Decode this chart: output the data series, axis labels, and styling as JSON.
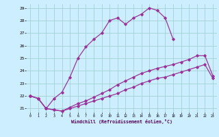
{
  "title": "",
  "xlabel": "Windchill (Refroidissement éolien,°C)",
  "background_color": "#cceeff",
  "line_color": "#993399",
  "xlim": [
    -0.5,
    23.5
  ],
  "ylim": [
    20.7,
    29.3
  ],
  "yticks": [
    21,
    22,
    23,
    24,
    25,
    26,
    27,
    28,
    29
  ],
  "xticks": [
    0,
    1,
    2,
    3,
    4,
    5,
    6,
    7,
    8,
    9,
    10,
    11,
    12,
    13,
    14,
    15,
    16,
    17,
    18,
    19,
    20,
    21,
    22,
    23
  ],
  "curve1_x": [
    0,
    1,
    2,
    3,
    4,
    5,
    6,
    7,
    8,
    9,
    10,
    11,
    12,
    13,
    14,
    15,
    16,
    17,
    18
  ],
  "curve1_y": [
    22.0,
    21.8,
    21.0,
    21.8,
    22.3,
    23.5,
    25.0,
    25.9,
    26.5,
    27.0,
    28.0,
    28.2,
    27.7,
    28.2,
    28.5,
    29.0,
    28.8,
    28.2,
    26.5
  ],
  "curve2_x": [
    0,
    1,
    2,
    3,
    4,
    5,
    6,
    7,
    8,
    9,
    10,
    11,
    12,
    13,
    14,
    15,
    16,
    17,
    18,
    19,
    20,
    21,
    22,
    23
  ],
  "curve2_y": [
    22.0,
    21.8,
    21.0,
    20.9,
    20.8,
    21.1,
    21.4,
    21.6,
    21.9,
    22.2,
    22.5,
    22.9,
    23.2,
    23.5,
    23.8,
    24.0,
    24.2,
    24.35,
    24.5,
    24.7,
    24.9,
    25.2,
    25.2,
    23.6
  ],
  "curve3_x": [
    0,
    1,
    2,
    3,
    4,
    5,
    6,
    7,
    8,
    9,
    10,
    11,
    12,
    13,
    14,
    15,
    16,
    17,
    18,
    19,
    20,
    21,
    22,
    23
  ],
  "curve3_y": [
    22.0,
    21.8,
    21.0,
    20.9,
    20.8,
    21.0,
    21.2,
    21.4,
    21.6,
    21.8,
    22.0,
    22.2,
    22.5,
    22.7,
    23.0,
    23.2,
    23.4,
    23.5,
    23.7,
    23.9,
    24.1,
    24.3,
    24.5,
    23.4
  ],
  "grid_color": "#99cccc",
  "marker": "D",
  "marker_size": 1.8,
  "linewidth": 0.9
}
